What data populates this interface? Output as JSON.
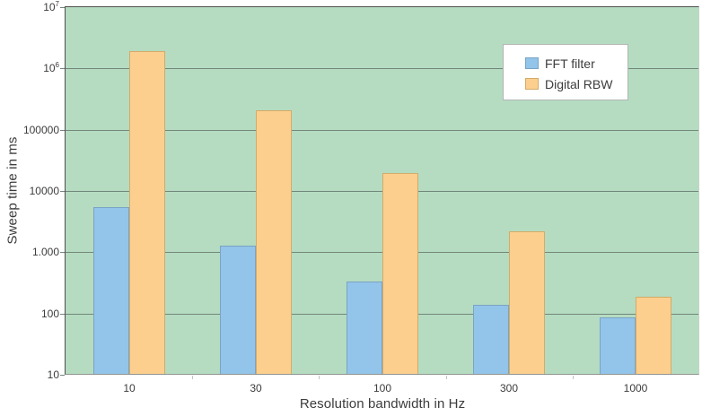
{
  "chart_data": {
    "type": "bar",
    "xlabel": "Resolution bandwidth in Hz",
    "ylabel": "Sweep time in ms",
    "categories": [
      "10",
      "30",
      "100",
      "300",
      "1000"
    ],
    "y_scale": "log",
    "ylim": [
      10,
      10000000
    ],
    "y_ticks": [
      {
        "text": "10",
        "sup": "7",
        "value": 10000000
      },
      {
        "text": "10",
        "sup": "6",
        "value": 1000000
      },
      {
        "text": "100000",
        "value": 100000
      },
      {
        "text": "10000",
        "value": 10000
      },
      {
        "text": "1.000",
        "value": 1000
      },
      {
        "text": "100",
        "value": 100
      },
      {
        "text": "10",
        "value": 10
      }
    ],
    "series": [
      {
        "name": "FFT filter",
        "fill": "#93c4e9",
        "border": "#7ba3c4",
        "values": [
          5500,
          1300,
          330,
          140,
          85
        ]
      },
      {
        "name": "Digital RBW",
        "fill": "#fccf8e",
        "border": "#d3ab68",
        "values": [
          1900000,
          210000,
          19500,
          2200,
          185
        ]
      }
    ],
    "grid": "horizontal",
    "legend_position": "top-right",
    "colors": {
      "plot_background": "#b5dcc1",
      "gridline": "#72867a",
      "text": "#3c3c3c"
    }
  }
}
